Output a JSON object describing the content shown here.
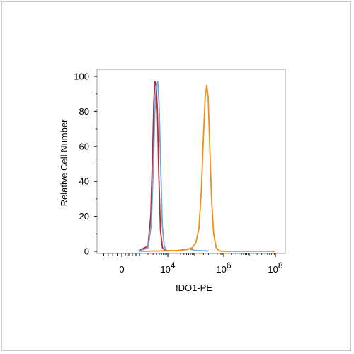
{
  "chart_data": {
    "type": "line",
    "xlabel": "IDO1-PE",
    "ylabel": "Relative Cell Number",
    "xscale": "biexponential",
    "ylim": [
      0,
      100
    ],
    "y_ticks": [
      "0",
      "20",
      "40",
      "60",
      "80",
      "100"
    ],
    "x_ticks": [
      {
        "base": "0",
        "exp": ""
      },
      {
        "base": "10",
        "exp": "4"
      },
      {
        "base": "10",
        "exp": "6"
      },
      {
        "base": "10",
        "exp": "8"
      }
    ],
    "grid": false,
    "legend": "none",
    "series": [
      {
        "color": "#c0282d",
        "points": [
          [
            1000,
            0.5
          ],
          [
            2000,
            3
          ],
          [
            2500,
            20
          ],
          [
            2900,
            55
          ],
          [
            3200,
            85
          ],
          [
            3500,
            97
          ],
          [
            3900,
            95
          ],
          [
            4300,
            80
          ],
          [
            4800,
            45
          ],
          [
            5500,
            12
          ],
          [
            6500,
            2
          ],
          [
            8000,
            0.5
          ],
          [
            10000,
            0.2
          ]
        ]
      },
      {
        "color": "#6fa8dc",
        "points": [
          [
            1000,
            0.3
          ],
          [
            2000,
            2
          ],
          [
            2600,
            15
          ],
          [
            3100,
            50
          ],
          [
            3500,
            82
          ],
          [
            3900,
            94
          ],
          [
            4400,
            97
          ],
          [
            4900,
            85
          ],
          [
            5600,
            50
          ],
          [
            6400,
            15
          ],
          [
            7500,
            3
          ],
          [
            9000,
            0.5
          ],
          [
            20000,
            0.3
          ],
          [
            60000,
            1.5
          ],
          [
            100000,
            0.5
          ],
          [
            300000,
            0.2
          ]
        ]
      },
      {
        "color": "#f0901a",
        "points": [
          [
            1000,
            0
          ],
          [
            8000,
            0.3
          ],
          [
            30000,
            0.5
          ],
          [
            50000,
            1
          ],
          [
            80000,
            2
          ],
          [
            110000,
            5
          ],
          [
            140000,
            13
          ],
          [
            170000,
            35
          ],
          [
            200000,
            65
          ],
          [
            230000,
            88
          ],
          [
            260000,
            95
          ],
          [
            290000,
            88
          ],
          [
            330000,
            60
          ],
          [
            380000,
            30
          ],
          [
            450000,
            10
          ],
          [
            550000,
            2
          ],
          [
            700000,
            0.3
          ],
          [
            1000000,
            0
          ],
          [
            100000000,
            0
          ]
        ]
      }
    ]
  }
}
